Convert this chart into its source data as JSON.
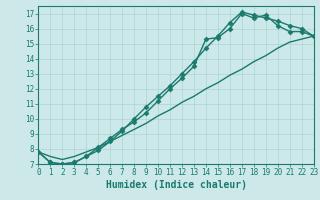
{
  "series": [
    {
      "x": [
        0,
        1,
        2,
        3,
        4,
        5,
        6,
        7,
        8,
        9,
        10,
        11,
        12,
        13,
        14,
        15,
        16,
        17,
        18,
        19,
        20,
        21,
        22,
        23
      ],
      "y": [
        7.8,
        7.1,
        7.0,
        7.1,
        7.5,
        7.9,
        8.5,
        9.2,
        10.0,
        10.8,
        11.5,
        12.2,
        13.0,
        13.8,
        14.7,
        15.5,
        16.4,
        17.1,
        16.9,
        16.7,
        16.5,
        16.2,
        16.0,
        15.5
      ],
      "color": "#1a7a6e",
      "marker": "D",
      "markersize": 2.5,
      "linewidth": 1.0
    },
    {
      "x": [
        0,
        1,
        2,
        3,
        4,
        5,
        6,
        7,
        8,
        9,
        10,
        11,
        12,
        13,
        14,
        15,
        16,
        17,
        18,
        19,
        20,
        21,
        22,
        23
      ],
      "y": [
        7.8,
        7.1,
        7.0,
        7.1,
        7.5,
        8.1,
        8.7,
        9.3,
        9.8,
        10.4,
        11.2,
        12.0,
        12.7,
        13.5,
        15.3,
        15.4,
        16.0,
        17.0,
        16.7,
        16.9,
        16.2,
        15.8,
        15.8,
        15.5
      ],
      "color": "#1a7a6e",
      "marker": "D",
      "markersize": 2.5,
      "linewidth": 1.0
    },
    {
      "x": [
        0,
        1,
        2,
        3,
        4,
        5,
        6,
        7,
        8,
        9,
        10,
        11,
        12,
        13,
        14,
        15,
        16,
        17,
        18,
        19,
        20,
        21,
        22,
        23
      ],
      "y": [
        7.8,
        7.5,
        7.3,
        7.5,
        7.8,
        8.1,
        8.5,
        8.9,
        9.3,
        9.7,
        10.2,
        10.6,
        11.1,
        11.5,
        12.0,
        12.4,
        12.9,
        13.3,
        13.8,
        14.2,
        14.7,
        15.1,
        15.3,
        15.5
      ],
      "color": "#1a7a6e",
      "marker": null,
      "markersize": 0,
      "linewidth": 1.0
    }
  ],
  "xlim": [
    0,
    23
  ],
  "ylim": [
    7,
    17.5
  ],
  "xticks": [
    0,
    1,
    2,
    3,
    4,
    5,
    6,
    7,
    8,
    9,
    10,
    11,
    12,
    13,
    14,
    15,
    16,
    17,
    18,
    19,
    20,
    21,
    22,
    23
  ],
  "yticks": [
    7,
    8,
    9,
    10,
    11,
    12,
    13,
    14,
    15,
    16,
    17
  ],
  "xlabel": "Humidex (Indice chaleur)",
  "bg_color": "#cce8e8",
  "grid_color": "#aad4d4",
  "line_color": "#1a7a6e",
  "label_color": "#1a7a6e",
  "xlabel_fontsize": 7,
  "tick_fontsize": 5.5
}
